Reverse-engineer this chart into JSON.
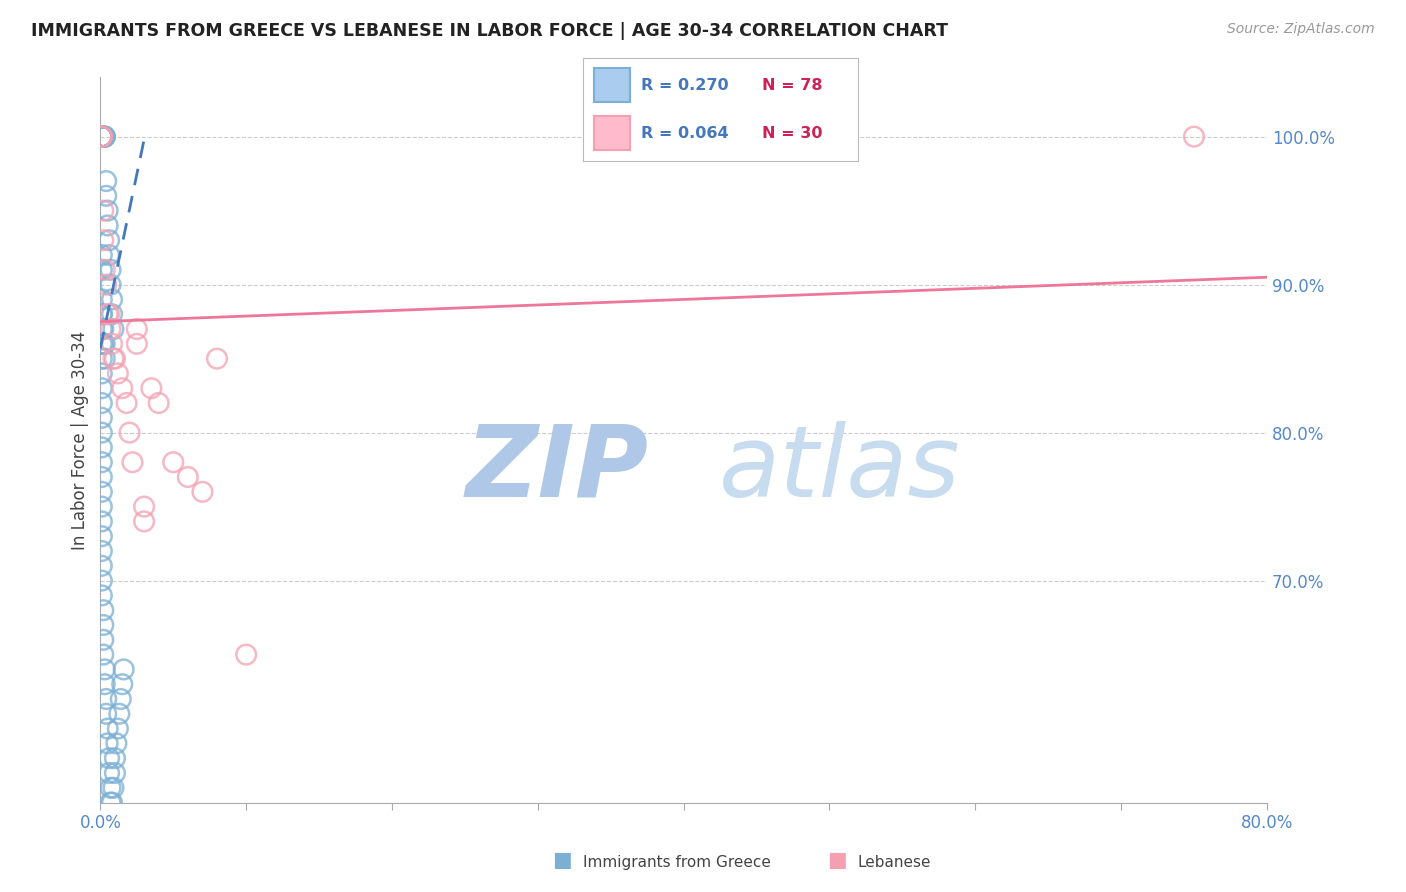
{
  "title": "IMMIGRANTS FROM GREECE VS LEBANESE IN LABOR FORCE | AGE 30-34 CORRELATION CHART",
  "source": "Source: ZipAtlas.com",
  "ylabel": "In Labor Force | Age 30-34",
  "xlim": [
    0.0,
    0.8
  ],
  "ylim": [
    0.55,
    1.04
  ],
  "xtick_positions": [
    0.0,
    0.1,
    0.2,
    0.3,
    0.4,
    0.5,
    0.6,
    0.7,
    0.8
  ],
  "xtick_labels_show": {
    "0.0": "0.0%",
    "0.80": "80.0%"
  },
  "yticks_right": [
    0.7,
    0.8,
    0.9,
    1.0
  ],
  "yticklabels_right": [
    "70.0%",
    "80.0%",
    "90.0%",
    "100.0%"
  ],
  "greece_color": "#7BAFD4",
  "lebanon_color": "#F4A0B0",
  "greece_trend_color": "#4477BB",
  "lebanon_trend_color": "#EE7799",
  "tick_color": "#5588CC",
  "grid_color": "#CCCCCC",
  "watermark_color": "#C8DCF0",
  "watermark_zip_color": "#B0C8E8",
  "watermark_atlas_color": "#C8DCF0",
  "greece_x": [
    0.001,
    0.001,
    0.001,
    0.001,
    0.001,
    0.001,
    0.001,
    0.002,
    0.002,
    0.002,
    0.002,
    0.002,
    0.003,
    0.003,
    0.003,
    0.004,
    0.004,
    0.005,
    0.005,
    0.006,
    0.006,
    0.007,
    0.007,
    0.008,
    0.008,
    0.009,
    0.001,
    0.001,
    0.001,
    0.001,
    0.002,
    0.002,
    0.003,
    0.003,
    0.001,
    0.001,
    0.001,
    0.001,
    0.001,
    0.001,
    0.001,
    0.001,
    0.001,
    0.001,
    0.001,
    0.001,
    0.001,
    0.001,
    0.001,
    0.001,
    0.001,
    0.001,
    0.001,
    0.001,
    0.002,
    0.002,
    0.002,
    0.002,
    0.003,
    0.003,
    0.004,
    0.004,
    0.005,
    0.005,
    0.006,
    0.006,
    0.007,
    0.007,
    0.008,
    0.009,
    0.01,
    0.01,
    0.011,
    0.012,
    0.013,
    0.014,
    0.015,
    0.016
  ],
  "greece_y": [
    1.0,
    1.0,
    1.0,
    1.0,
    1.0,
    1.0,
    1.0,
    1.0,
    1.0,
    1.0,
    1.0,
    1.0,
    1.0,
    1.0,
    1.0,
    0.97,
    0.96,
    0.95,
    0.94,
    0.93,
    0.92,
    0.91,
    0.9,
    0.89,
    0.88,
    0.87,
    0.92,
    0.91,
    0.89,
    0.88,
    0.87,
    0.86,
    0.86,
    0.85,
    0.88,
    0.87,
    0.86,
    0.85,
    0.84,
    0.83,
    0.82,
    0.81,
    0.8,
    0.79,
    0.78,
    0.77,
    0.76,
    0.75,
    0.74,
    0.73,
    0.72,
    0.71,
    0.7,
    0.69,
    0.68,
    0.67,
    0.66,
    0.65,
    0.64,
    0.63,
    0.62,
    0.61,
    0.6,
    0.59,
    0.58,
    0.57,
    0.56,
    0.55,
    0.55,
    0.56,
    0.57,
    0.58,
    0.59,
    0.6,
    0.61,
    0.62,
    0.63,
    0.64
  ],
  "lebanon_x": [
    0.001,
    0.001,
    0.001,
    0.002,
    0.002,
    0.003,
    0.004,
    0.005,
    0.006,
    0.007,
    0.008,
    0.009,
    0.01,
    0.012,
    0.015,
    0.018,
    0.02,
    0.022,
    0.025,
    0.025,
    0.03,
    0.03,
    0.035,
    0.04,
    0.05,
    0.06,
    0.07,
    0.08,
    0.1,
    0.75
  ],
  "lebanon_y": [
    1.0,
    1.0,
    1.0,
    0.95,
    0.93,
    0.91,
    0.9,
    0.88,
    0.88,
    0.87,
    0.86,
    0.85,
    0.85,
    0.84,
    0.83,
    0.82,
    0.8,
    0.78,
    0.87,
    0.86,
    0.75,
    0.74,
    0.83,
    0.82,
    0.78,
    0.77,
    0.76,
    0.85,
    0.65,
    1.0
  ],
  "greece_trend_x": [
    0.0,
    0.03
  ],
  "greece_trend_y": [
    0.857,
    0.998
  ],
  "lebanon_trend_x": [
    0.0,
    0.8
  ],
  "lebanon_trend_y": [
    0.875,
    0.905
  ]
}
